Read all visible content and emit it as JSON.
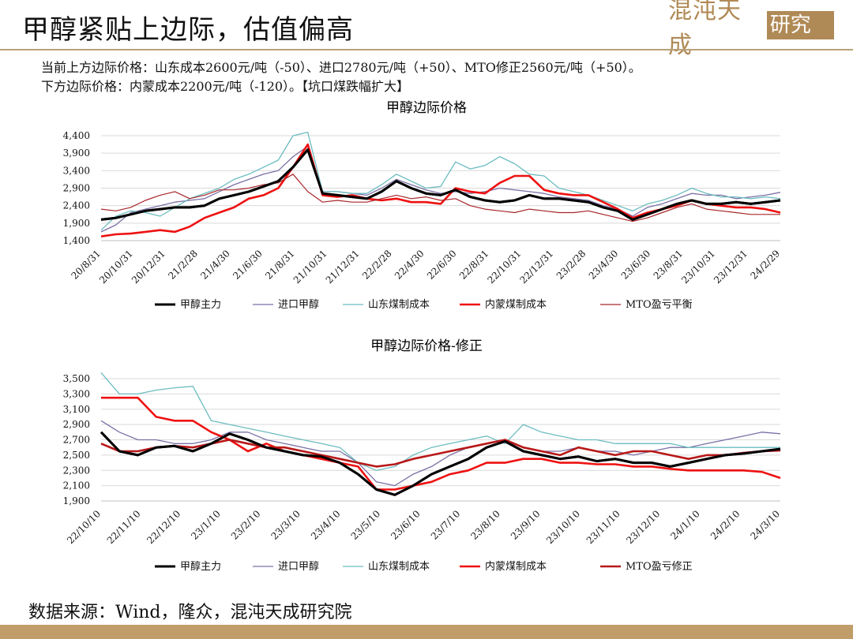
{
  "header": {
    "title": "甲醇紧贴上边际，估值偏高",
    "logo_text": "混沌天成",
    "logo_box": "研究院"
  },
  "notes": {
    "line1": "当前上方边际价格：山东成本2600元/吨（-50）、进口2780元/吨（+50）、MTO修正2560元/吨（+50）。",
    "line2": "下方边际价格：内蒙成本2200元/吨（-120）。【坑口煤跌幅扩大】"
  },
  "source": "数据来源：Wind，隆众，混沌天成研究院",
  "colors": {
    "accent": "#b08a56",
    "bar": "#c19e69"
  },
  "chart_data": [
    {
      "type": "line",
      "title": "甲醇边际价格",
      "ylim": [
        1400,
        4400
      ],
      "yticks": [
        "1,400",
        "1,900",
        "2,400",
        "2,900",
        "3,400",
        "3,900",
        "4,400"
      ],
      "xticks": [
        "20/8/31",
        "20/10/31",
        "20/12/31",
        "21/2/28",
        "21/4/30",
        "21/6/30",
        "21/8/31",
        "21/10/31",
        "21/12/31",
        "22/2/28",
        "22/4/30",
        "22/6/30",
        "22/8/31",
        "22/10/31",
        "22/12/31",
        "23/2/28",
        "23/4/30",
        "23/6/30",
        "23/8/31",
        "23/10/31",
        "23/12/31",
        "24/2/29"
      ],
      "series": [
        {
          "name": "甲醇主力",
          "color": "#000000",
          "width": 3,
          "values": [
            2000,
            2050,
            2150,
            2250,
            2300,
            2350,
            2350,
            2400,
            2600,
            2700,
            2800,
            2950,
            3100,
            3500,
            4000,
            2750,
            2700,
            2650,
            2600,
            2800,
            3100,
            2900,
            2750,
            2700,
            2850,
            2650,
            2550,
            2500,
            2550,
            2700,
            2600,
            2600,
            2550,
            2500,
            2350,
            2250,
            2000,
            2150,
            2300,
            2450,
            2550,
            2450,
            2450,
            2500,
            2450,
            2500,
            2550
          ]
        },
        {
          "name": "进口甲醇",
          "color": "#7b70a6",
          "width": 1.3,
          "values": [
            1650,
            1850,
            2200,
            2300,
            2400,
            2500,
            2550,
            2600,
            2800,
            3000,
            3150,
            3300,
            3400,
            3800,
            4100,
            2800,
            2800,
            2750,
            2700,
            2900,
            3150,
            3000,
            2850,
            2750,
            2800,
            2750,
            2800,
            2900,
            2850,
            2800,
            2750,
            2650,
            2600,
            2550,
            2400,
            2300,
            2100,
            2350,
            2450,
            2600,
            2750,
            2700,
            2700,
            2600,
            2650,
            2700,
            2780
          ]
        },
        {
          "name": "山东煤制成本",
          "color": "#6cbcc0",
          "width": 1.3,
          "values": [
            1700,
            2100,
            2250,
            2200,
            2100,
            2350,
            2600,
            2750,
            2900,
            3150,
            3300,
            3500,
            3700,
            4400,
            4500,
            2800,
            2800,
            2750,
            2750,
            3000,
            3300,
            3100,
            2900,
            2950,
            3650,
            3450,
            3550,
            3800,
            3600,
            3300,
            3250,
            2900,
            2800,
            2700,
            2550,
            2400,
            2250,
            2450,
            2550,
            2700,
            2900,
            2750,
            2650,
            2650,
            2600,
            2650,
            2600
          ]
        },
        {
          "name": "内蒙煤制成本",
          "color": "#ee1111",
          "width": 2.6,
          "values": [
            1520,
            1580,
            1600,
            1650,
            1700,
            1650,
            1800,
            2050,
            2200,
            2350,
            2600,
            2700,
            2900,
            3500,
            4150,
            2700,
            2650,
            2700,
            2600,
            2550,
            2600,
            2500,
            2500,
            2450,
            2900,
            2800,
            2750,
            3050,
            3250,
            3250,
            2850,
            2750,
            2700,
            2700,
            2500,
            2300,
            2050,
            2200,
            2300,
            2400,
            2550,
            2450,
            2400,
            2350,
            2350,
            2300,
            2200
          ]
        },
        {
          "name": "MTO盈亏平衡",
          "color": "#a8262b",
          "width": 1.2,
          "values": [
            2300,
            2250,
            2350,
            2550,
            2700,
            2800,
            2600,
            2700,
            2850,
            2850,
            2900,
            3000,
            3050,
            3300,
            2800,
            2500,
            2550,
            2500,
            2500,
            2600,
            2700,
            2600,
            2650,
            2550,
            2600,
            2400,
            2300,
            2250,
            2200,
            2300,
            2250,
            2200,
            2200,
            2250,
            2150,
            2050,
            1950,
            2050,
            2200,
            2350,
            2450,
            2300,
            2250,
            2200,
            2150,
            2150,
            2150
          ]
        }
      ]
    },
    {
      "type": "line",
      "title": "甲醇边际价格-修正",
      "ylim": [
        1900,
        3500
      ],
      "yticks": [
        "1,900",
        "2,100",
        "2,300",
        "2,500",
        "2,700",
        "2,900",
        "3,100",
        "3,300",
        "3,500"
      ],
      "xticks": [
        "22/10/10",
        "22/11/10",
        "22/12/10",
        "23/1/10",
        "23/2/10",
        "23/3/10",
        "23/4/10",
        "23/5/10",
        "23/6/10",
        "23/7/10",
        "23/8/10",
        "23/9/10",
        "23/10/10",
        "23/11/10",
        "23/12/10",
        "24/1/10",
        "24/2/10",
        "24/3/10"
      ],
      "series": [
        {
          "name": "甲醇主力",
          "color": "#000000",
          "width": 3,
          "values": [
            2800,
            2550,
            2500,
            2600,
            2620,
            2550,
            2650,
            2780,
            2700,
            2600,
            2550,
            2500,
            2480,
            2400,
            2250,
            2050,
            1980,
            2100,
            2250,
            2350,
            2450,
            2600,
            2680,
            2550,
            2500,
            2450,
            2480,
            2420,
            2450,
            2400,
            2400,
            2350,
            2400,
            2450,
            2500,
            2520,
            2550,
            2580
          ]
        },
        {
          "name": "进口甲醇",
          "color": "#7b70a6",
          "width": 1.3,
          "values": [
            2950,
            2800,
            2700,
            2700,
            2650,
            2650,
            2700,
            2800,
            2800,
            2700,
            2650,
            2600,
            2550,
            2550,
            2400,
            2150,
            2100,
            2250,
            2350,
            2500,
            2600,
            2650,
            2700,
            2600,
            2550,
            2550,
            2600,
            2550,
            2550,
            2500,
            2550,
            2600,
            2600,
            2650,
            2700,
            2750,
            2800,
            2780
          ]
        },
        {
          "name": "山东煤制成本",
          "color": "#6cbcc0",
          "width": 1.3,
          "values": [
            3580,
            3300,
            3300,
            3350,
            3380,
            3400,
            2950,
            2900,
            2850,
            2800,
            2750,
            2700,
            2650,
            2600,
            2400,
            2300,
            2350,
            2500,
            2600,
            2650,
            2700,
            2750,
            2650,
            2900,
            2800,
            2750,
            2700,
            2700,
            2650,
            2650,
            2650,
            2650,
            2600,
            2600,
            2600,
            2600,
            2600,
            2600
          ]
        },
        {
          "name": "内蒙煤制成本",
          "color": "#ee1111",
          "width": 2.6,
          "values": [
            3250,
            3250,
            3250,
            3000,
            2950,
            2950,
            2800,
            2700,
            2550,
            2650,
            2550,
            2500,
            2450,
            2400,
            2350,
            2050,
            2050,
            2100,
            2150,
            2250,
            2300,
            2400,
            2400,
            2450,
            2450,
            2400,
            2400,
            2380,
            2380,
            2350,
            2350,
            2320,
            2300,
            2300,
            2300,
            2300,
            2280,
            2200
          ]
        },
        {
          "name": "MTO盈亏修正",
          "color": "#b81818",
          "width": 2.6,
          "values": [
            2650,
            2550,
            2550,
            2600,
            2620,
            2600,
            2650,
            2700,
            2650,
            2600,
            2600,
            2550,
            2500,
            2450,
            2400,
            2350,
            2380,
            2450,
            2500,
            2550,
            2600,
            2650,
            2700,
            2600,
            2550,
            2500,
            2600,
            2550,
            2500,
            2550,
            2550,
            2500,
            2450,
            2500,
            2500,
            2530,
            2550,
            2560
          ]
        }
      ]
    }
  ]
}
